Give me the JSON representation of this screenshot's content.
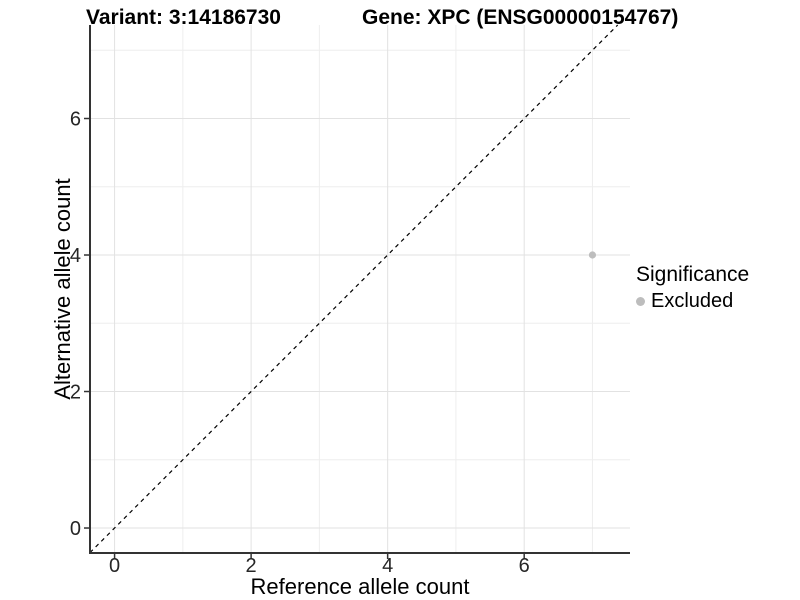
{
  "chart_data": {
    "type": "scatter",
    "title_left": "Variant: 3:14186730",
    "title_right": "Gene: XPC (ENSG00000154767)",
    "xlabel": "Reference allele count",
    "ylabel": "Alternative allele count",
    "xlim": [
      -0.36,
      7.55
    ],
    "ylim": [
      -0.366,
      7.37
    ],
    "x_major_ticks": [
      0,
      2,
      4,
      6
    ],
    "x_minor_ticks": [
      1,
      3,
      5,
      7
    ],
    "y_major_ticks": [
      0,
      2,
      4,
      6
    ],
    "y_minor_ticks": [
      1,
      3,
      5,
      7
    ],
    "grid": true,
    "legend_position": "right",
    "legend_title": "Significance",
    "series": [
      {
        "name": "Excluded",
        "color": "#bdbdbd",
        "points": [
          {
            "x": 7,
            "y": 4
          }
        ]
      }
    ],
    "reference_line": {
      "type": "identity",
      "slope": 1,
      "intercept": 0,
      "style": "dashed",
      "color": "#000000"
    },
    "colors": {
      "grid_major": "#e2e2e2",
      "grid_minor": "#eeeeee",
      "axis_line": "#333333",
      "tick_text": "#262626",
      "background": "#ffffff"
    }
  }
}
